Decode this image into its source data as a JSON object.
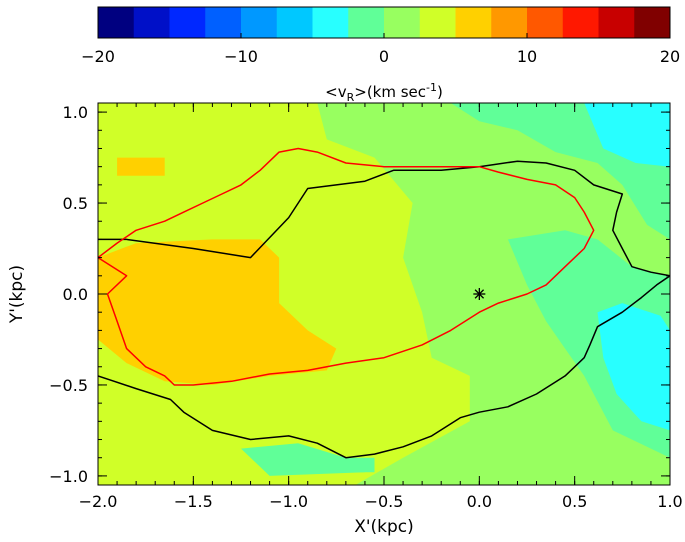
{
  "chart_data": {
    "type": "heatmap",
    "xlabel": "X'(kpc)",
    "ylabel": "Y'(kpc)",
    "xlim": [
      -2.0,
      1.0
    ],
    "ylim": [
      -1.05,
      1.05
    ],
    "x_ticks": [
      "-2.0",
      "-1.5",
      "-1.0",
      "-0.5",
      "0.0",
      "0.5",
      "1.0"
    ],
    "y_ticks": [
      "1.0",
      "0.5",
      "0.0",
      "-0.5",
      "-1.0"
    ],
    "colorbar": {
      "label": "<v",
      "label_sub": "R",
      "label_rest": ">(km sec",
      "label_sup": "-1",
      "label_close": ")",
      "range": [
        -20,
        20
      ],
      "ticks": [
        "-20",
        "-10",
        "0",
        "10",
        "20"
      ],
      "colors": [
        "#000080",
        "#0010c8",
        "#0028ff",
        "#0060ff",
        "#0098ff",
        "#00c8ff",
        "#28ffff",
        "#60ff98",
        "#98ff60",
        "#d0ff28",
        "#ffd000",
        "#ff9800",
        "#ff5800",
        "#ff1800",
        "#c80000",
        "#800000"
      ]
    },
    "field_colors": {
      "level_0": "#98ff60",
      "level_1": "#d0ff28",
      "level_2": "#ffd000",
      "level_minus1": "#60ff98",
      "level_minus2": "#28ffff"
    },
    "contours": [
      {
        "color": "#000000",
        "points": [
          [
            -2.0,
            0.3
          ],
          [
            -1.85,
            0.3
          ],
          [
            -1.5,
            0.25
          ],
          [
            -1.2,
            0.2
          ],
          [
            -1.0,
            0.42
          ],
          [
            -0.9,
            0.58
          ],
          [
            -0.75,
            0.6
          ],
          [
            -0.6,
            0.62
          ],
          [
            -0.45,
            0.68
          ],
          [
            -0.2,
            0.68
          ],
          [
            0.0,
            0.7
          ],
          [
            0.2,
            0.73
          ],
          [
            0.35,
            0.72
          ],
          [
            0.5,
            0.68
          ],
          [
            0.6,
            0.6
          ],
          [
            0.75,
            0.55
          ],
          [
            0.72,
            0.45
          ],
          [
            0.7,
            0.35
          ],
          [
            0.75,
            0.25
          ],
          [
            0.8,
            0.15
          ],
          [
            0.9,
            0.12
          ],
          [
            1.0,
            0.1
          ],
          [
            0.93,
            0.05
          ],
          [
            0.85,
            -0.02
          ],
          [
            0.75,
            -0.1
          ],
          [
            0.62,
            -0.18
          ],
          [
            0.58,
            -0.28
          ],
          [
            0.55,
            -0.35
          ],
          [
            0.5,
            -0.4
          ],
          [
            0.45,
            -0.45
          ],
          [
            0.3,
            -0.55
          ],
          [
            0.15,
            -0.62
          ],
          [
            0.0,
            -0.65
          ],
          [
            -0.1,
            -0.68
          ],
          [
            -0.25,
            -0.78
          ],
          [
            -0.4,
            -0.84
          ],
          [
            -0.55,
            -0.88
          ],
          [
            -0.7,
            -0.9
          ],
          [
            -0.85,
            -0.82
          ],
          [
            -1.0,
            -0.78
          ],
          [
            -1.2,
            -0.8
          ],
          [
            -1.4,
            -0.75
          ],
          [
            -1.55,
            -0.65
          ],
          [
            -1.62,
            -0.58
          ],
          [
            -1.8,
            -0.52
          ],
          [
            -2.0,
            -0.45
          ]
        ]
      },
      {
        "color": "#ff0000",
        "points": [
          [
            -2.0,
            0.2
          ],
          [
            -1.9,
            0.28
          ],
          [
            -1.8,
            0.35
          ],
          [
            -1.65,
            0.4
          ],
          [
            -1.55,
            0.45
          ],
          [
            -1.45,
            0.5
          ],
          [
            -1.35,
            0.55
          ],
          [
            -1.25,
            0.6
          ],
          [
            -1.15,
            0.68
          ],
          [
            -1.05,
            0.78
          ],
          [
            -0.95,
            0.8
          ],
          [
            -0.85,
            0.78
          ],
          [
            -0.7,
            0.72
          ],
          [
            -0.5,
            0.7
          ],
          [
            -0.3,
            0.7
          ],
          [
            -0.15,
            0.7
          ],
          [
            0.0,
            0.7
          ],
          [
            0.1,
            0.67
          ],
          [
            0.25,
            0.63
          ],
          [
            0.4,
            0.6
          ],
          [
            0.5,
            0.53
          ],
          [
            0.55,
            0.45
          ],
          [
            0.6,
            0.35
          ],
          [
            0.55,
            0.25
          ],
          [
            0.45,
            0.15
          ],
          [
            0.35,
            0.05
          ],
          [
            0.25,
            0.0
          ],
          [
            0.1,
            -0.05
          ],
          [
            0.0,
            -0.1
          ],
          [
            -0.15,
            -0.2
          ],
          [
            -0.3,
            -0.28
          ],
          [
            -0.5,
            -0.35
          ],
          [
            -0.7,
            -0.38
          ],
          [
            -0.9,
            -0.42
          ],
          [
            -1.1,
            -0.44
          ],
          [
            -1.3,
            -0.48
          ],
          [
            -1.5,
            -0.5
          ],
          [
            -1.6,
            -0.5
          ],
          [
            -1.65,
            -0.45
          ],
          [
            -1.75,
            -0.4
          ],
          [
            -1.85,
            -0.3
          ],
          [
            -1.9,
            -0.15
          ],
          [
            -1.95,
            0.0
          ],
          [
            -1.85,
            0.1
          ],
          [
            -2.0,
            0.2
          ]
        ]
      }
    ],
    "marker": {
      "x": 0.0,
      "y": 0.0,
      "symbol": "asterisk"
    }
  }
}
